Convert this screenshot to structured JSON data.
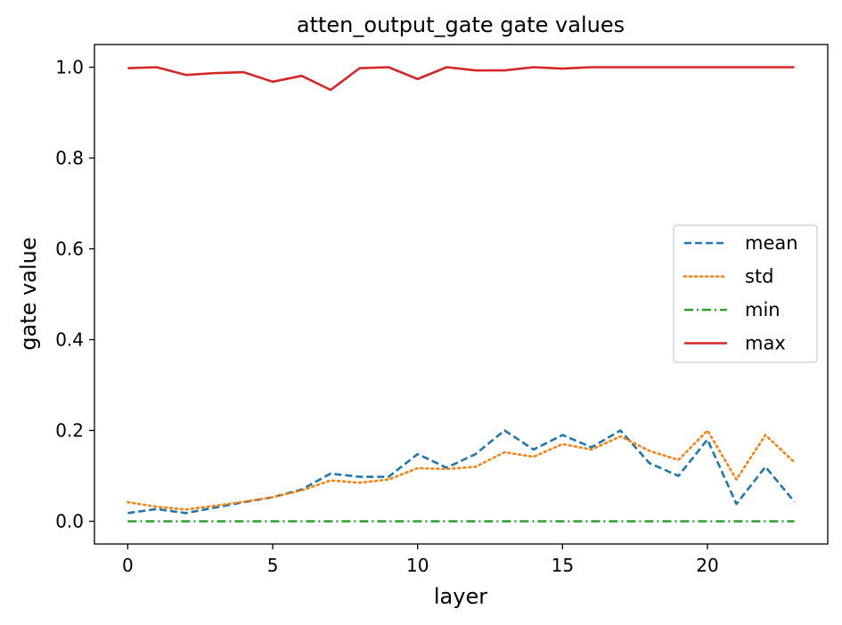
{
  "chart_data": {
    "type": "line",
    "title": "atten_output_gate gate values",
    "xlabel": "layer",
    "ylabel": "gate value",
    "xlim": [
      -1.15,
      24.15
    ],
    "ylim": [
      -0.05,
      1.05
    ],
    "xticks": [
      0,
      5,
      10,
      15,
      20
    ],
    "xtick_labels": [
      "0",
      "5",
      "10",
      "15",
      "20"
    ],
    "yticks": [
      0.0,
      0.2,
      0.4,
      0.6,
      0.8,
      1.0
    ],
    "ytick_labels": [
      "0.0",
      "0.2",
      "0.4",
      "0.6",
      "0.8",
      "1.0"
    ],
    "grid": false,
    "legend_position": "center-right",
    "x": [
      0,
      1,
      2,
      3,
      4,
      5,
      6,
      7,
      8,
      9,
      10,
      11,
      12,
      13,
      14,
      15,
      16,
      17,
      18,
      19,
      20,
      21,
      22,
      23
    ],
    "series": [
      {
        "name": "mean",
        "color": "#1f77b4",
        "style": "dashed",
        "values": [
          0.018,
          0.027,
          0.018,
          0.03,
          0.042,
          0.053,
          0.07,
          0.105,
          0.098,
          0.098,
          0.148,
          0.118,
          0.148,
          0.2,
          0.158,
          0.19,
          0.163,
          0.2,
          0.128,
          0.1,
          0.18,
          0.038,
          0.12,
          0.043
        ]
      },
      {
        "name": "std",
        "color": "#ff7f0e",
        "style": "dotted",
        "values": [
          0.042,
          0.032,
          0.026,
          0.034,
          0.043,
          0.053,
          0.068,
          0.09,
          0.085,
          0.092,
          0.117,
          0.115,
          0.12,
          0.152,
          0.142,
          0.17,
          0.158,
          0.187,
          0.155,
          0.135,
          0.2,
          0.092,
          0.19,
          0.13
        ]
      },
      {
        "name": "min",
        "color": "#2ca02c",
        "style": "dashdot",
        "values": [
          0.0,
          0.0,
          0.0,
          0.0,
          0.0,
          0.0,
          0.0,
          0.0,
          0.0,
          0.0,
          0.0,
          0.0,
          0.0,
          0.0,
          0.0,
          0.0,
          0.0,
          0.0,
          0.0,
          0.0,
          0.0,
          0.0,
          0.0,
          0.0
        ]
      },
      {
        "name": "max",
        "color": "#d62728",
        "style": "solid",
        "values": [
          0.998,
          1.0,
          0.983,
          0.987,
          0.989,
          0.968,
          0.981,
          0.95,
          0.998,
          1.0,
          0.974,
          1.0,
          0.993,
          0.993,
          1.0,
          0.997,
          1.0,
          1.0,
          1.0,
          1.0,
          1.0,
          1.0,
          1.0,
          1.0
        ]
      }
    ]
  }
}
